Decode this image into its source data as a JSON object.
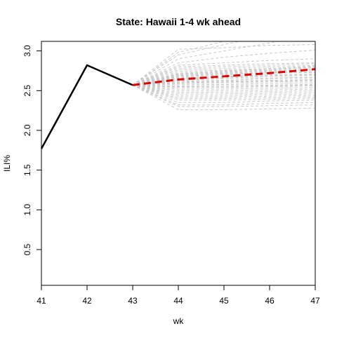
{
  "chart_data": {
    "type": "line",
    "title": "State: Hawaii 1-4 wk ahead",
    "xlabel": "wk",
    "ylabel": "ILI%",
    "xlim": [
      41,
      47
    ],
    "ylim": [
      0.05,
      3.12
    ],
    "x_ticks": [
      "41",
      "42",
      "43",
      "44",
      "45",
      "46",
      "47"
    ],
    "y_ticks": [
      "0.5",
      "1.0",
      "1.5",
      "2.0",
      "2.5",
      "3.0"
    ],
    "grid": false,
    "legend": "none",
    "colors": {
      "observed": "#000000",
      "forecast_mean": "#dd0000",
      "samples": "#c8c8c8",
      "axis": "#000000"
    },
    "observed": {
      "x": [
        41,
        42,
        43
      ],
      "y": [
        1.77,
        2.82,
        2.57
      ]
    },
    "forecast_mean": {
      "x": [
        43,
        44,
        45,
        46,
        47
      ],
      "y": [
        2.57,
        2.64,
        2.68,
        2.72,
        2.77
      ]
    },
    "samples": {
      "x": [
        43,
        44,
        45,
        46,
        47
      ],
      "paths": [
        [
          2.57,
          3.02,
          3.04,
          3.07,
          3.08
        ],
        [
          2.57,
          2.98,
          3.12,
          3.3,
          3.5
        ],
        [
          2.57,
          2.95,
          3.08,
          3.2,
          3.35
        ],
        [
          2.57,
          2.9,
          3.0,
          3.1,
          3.2
        ],
        [
          2.57,
          2.85,
          2.92,
          2.97,
          3.01
        ],
        [
          2.57,
          2.82,
          2.85,
          2.88,
          2.9
        ],
        [
          2.57,
          2.8,
          2.82,
          2.84,
          2.85
        ],
        [
          2.57,
          2.78,
          2.8,
          2.82,
          2.84
        ],
        [
          2.57,
          2.76,
          2.78,
          2.8,
          2.82
        ],
        [
          2.57,
          2.74,
          2.76,
          2.78,
          2.81
        ],
        [
          2.57,
          2.72,
          2.75,
          2.77,
          2.8
        ],
        [
          2.57,
          2.71,
          2.74,
          2.76,
          2.79
        ],
        [
          2.57,
          2.7,
          2.73,
          2.75,
          2.77
        ],
        [
          2.57,
          2.69,
          2.72,
          2.74,
          2.76
        ],
        [
          2.57,
          2.68,
          2.71,
          2.73,
          2.74
        ],
        [
          2.57,
          2.67,
          2.7,
          2.72,
          2.73
        ],
        [
          2.57,
          2.66,
          2.68,
          2.7,
          2.71
        ],
        [
          2.57,
          2.65,
          2.67,
          2.69,
          2.7
        ],
        [
          2.57,
          2.64,
          2.66,
          2.68,
          2.69
        ],
        [
          2.57,
          2.63,
          2.65,
          2.66,
          2.67
        ],
        [
          2.57,
          2.62,
          2.63,
          2.65,
          2.66
        ],
        [
          2.57,
          2.61,
          2.62,
          2.63,
          2.64
        ],
        [
          2.57,
          2.6,
          2.61,
          2.62,
          2.63
        ],
        [
          2.57,
          2.59,
          2.6,
          2.61,
          2.62
        ],
        [
          2.57,
          2.58,
          2.58,
          2.59,
          2.6
        ],
        [
          2.57,
          2.56,
          2.57,
          2.57,
          2.58
        ],
        [
          2.57,
          2.55,
          2.55,
          2.56,
          2.57
        ],
        [
          2.57,
          2.54,
          2.54,
          2.55,
          2.56
        ],
        [
          2.57,
          2.52,
          2.52,
          2.53,
          2.54
        ],
        [
          2.57,
          2.5,
          2.5,
          2.51,
          2.52
        ],
        [
          2.57,
          2.48,
          2.48,
          2.49,
          2.5
        ],
        [
          2.57,
          2.46,
          2.46,
          2.47,
          2.48
        ],
        [
          2.57,
          2.44,
          2.44,
          2.45,
          2.46
        ],
        [
          2.57,
          2.42,
          2.42,
          2.43,
          2.44
        ],
        [
          2.57,
          2.4,
          2.4,
          2.41,
          2.42
        ],
        [
          2.57,
          2.38,
          2.38,
          2.39,
          2.4
        ],
        [
          2.57,
          2.35,
          2.35,
          2.37,
          2.38
        ],
        [
          2.57,
          2.32,
          2.32,
          2.34,
          2.35
        ],
        [
          2.57,
          2.3,
          2.3,
          2.31,
          2.32
        ],
        [
          2.57,
          2.26,
          2.26,
          2.27,
          2.28
        ]
      ]
    }
  }
}
